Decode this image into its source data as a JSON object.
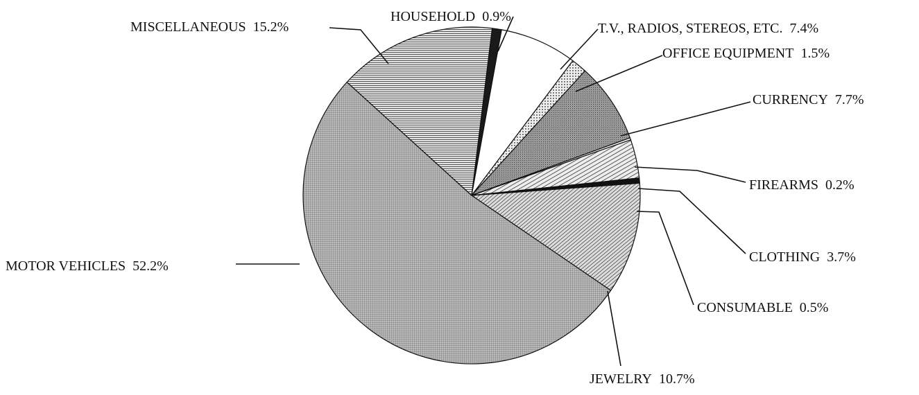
{
  "chart_data": {
    "type": "pie",
    "categories": [
      "HOUSEHOLD",
      "T.V., RADIOS, STEREOS, ETC.",
      "OFFICE EQUIPMENT",
      "CURRENCY",
      "FIREARMS",
      "CLOTHING",
      "CONSUMABLE",
      "JEWELRY",
      "MOTOR VEHICLES",
      "MISCELLANEOUS"
    ],
    "values": [
      0.9,
      7.4,
      1.5,
      7.7,
      0.2,
      3.7,
      0.5,
      10.7,
      52.2,
      15.2
    ],
    "value_labels": [
      "0.9%",
      "7.4%",
      "1.5%",
      "7.7%",
      "0.2%",
      "3.7%",
      "0.5%",
      "10.7%",
      "52.2%",
      "15.2%"
    ]
  }
}
